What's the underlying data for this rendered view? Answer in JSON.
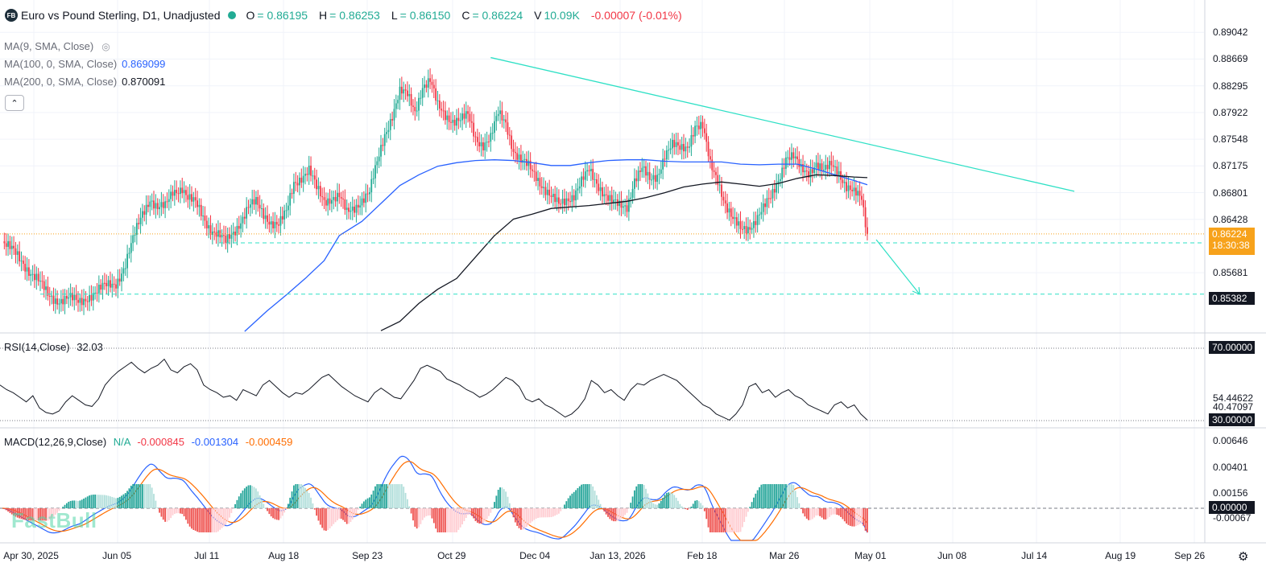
{
  "header": {
    "logo": "FB",
    "title": "Euro vs Pound Sterling, D1, Unadjusted",
    "ohlc": [
      {
        "k": "O",
        "v": "= 0.86195"
      },
      {
        "k": "H",
        "v": "= 0.86253"
      },
      {
        "k": "L",
        "v": "= 0.86150"
      },
      {
        "k": "C",
        "v": "= 0.86224"
      },
      {
        "k": "V",
        "v": "10.09K"
      }
    ],
    "change": "-0.00007 (-0.01%)"
  },
  "indicators": {
    "ma9": {
      "label": "MA(9, SMA, Close)",
      "value": ""
    },
    "ma100": {
      "label": "MA(100, 0, SMA, Close)",
      "value": "0.869099"
    },
    "ma200": {
      "label": "MA(200, 0, SMA, Close)",
      "value": "0.870091"
    },
    "rsi": {
      "label": "RSI(14,Close)",
      "value": "32.03"
    },
    "macd": {
      "label": "MACD(12,26,9,Close)",
      "v1": "N/A",
      "v2": "-0.000845",
      "v3": "-0.001304",
      "v4": "-0.000459"
    }
  },
  "watermark": "FastBull",
  "colors": {
    "up": "#22ab94",
    "down": "#f23645",
    "ma100": "#2962ff",
    "ma200": "#131722",
    "trend": "#2ee0c5",
    "price": "#f7a21b",
    "macd": "#2962ff",
    "signal": "#ff6d00"
  },
  "chart_data": {
    "type": "candlestick",
    "symbol": "EURGBP",
    "timeframe": "D1",
    "price_axis": {
      "ticks": [
        "0.89042",
        "0.88669",
        "0.88295",
        "0.87922",
        "0.87548",
        "0.87175",
        "0.86801",
        "0.86428",
        "0.85681"
      ],
      "range": [
        0.8485,
        0.8918
      ]
    },
    "time_axis": {
      "ticks": [
        "Apr 30, 2025",
        "Jun 05",
        "Jul 11",
        "Aug 18",
        "Sep 23",
        "Oct 29",
        "Dec 04",
        "Jan 13, 2026",
        "Feb 18",
        "Mar 26",
        "May 01",
        "Jun 08",
        "Jul 14",
        "Aug 19",
        "Sep 26"
      ]
    },
    "last_price": "0.86224",
    "countdown": "18:30:38",
    "target_price": "0.85382",
    "close_path": [
      [
        0,
        0.8612
      ],
      [
        10,
        0.8585
      ],
      [
        18,
        0.856
      ],
      [
        24,
        0.8536
      ],
      [
        29,
        0.8531
      ],
      [
        35,
        0.8532
      ],
      [
        40,
        0.8526
      ],
      [
        46,
        0.8537
      ],
      [
        50,
        0.8541
      ],
      [
        54,
        0.8548
      ],
      [
        60,
        0.8555
      ],
      [
        65,
        0.8579
      ],
      [
        70,
        0.8621
      ],
      [
        74,
        0.8653
      ],
      [
        78,
        0.8673
      ],
      [
        82,
        0.8657
      ],
      [
        86,
        0.8659
      ],
      [
        90,
        0.8683
      ],
      [
        95,
        0.8688
      ],
      [
        98,
        0.8671
      ],
      [
        102,
        0.8664
      ],
      [
        106,
        0.8648
      ],
      [
        110,
        0.863
      ],
      [
        114,
        0.862
      ],
      [
        118,
        0.861
      ],
      [
        122,
        0.8625
      ],
      [
        126,
        0.8642
      ],
      [
        130,
        0.8659
      ],
      [
        134,
        0.8665
      ],
      [
        138,
        0.8651
      ],
      [
        142,
        0.864
      ],
      [
        146,
        0.8634
      ],
      [
        150,
        0.8651
      ],
      [
        154,
        0.8695
      ],
      [
        158,
        0.8703
      ],
      [
        162,
        0.871
      ],
      [
        166,
        0.8685
      ],
      [
        170,
        0.867
      ],
      [
        174,
        0.8674
      ],
      [
        178,
        0.8674
      ],
      [
        182,
        0.865
      ],
      [
        186,
        0.866
      ],
      [
        190,
        0.8672
      ],
      [
        194,
        0.868
      ],
      [
        198,
        0.872
      ],
      [
        202,
        0.8762
      ],
      [
        206,
        0.879
      ],
      [
        210,
        0.882
      ],
      [
        214,
        0.8815
      ],
      [
        218,
        0.8795
      ],
      [
        222,
        0.883
      ],
      [
        226,
        0.8835
      ],
      [
        230,
        0.88
      ],
      [
        234,
        0.879
      ],
      [
        238,
        0.8782
      ],
      [
        242,
        0.878
      ],
      [
        246,
        0.8787
      ],
      [
        250,
        0.8758
      ],
      [
        254,
        0.8748
      ],
      [
        258,
        0.8755
      ],
      [
        262,
        0.879
      ],
      [
        266,
        0.878
      ],
      [
        270,
        0.874
      ],
      [
        274,
        0.8722
      ],
      [
        278,
        0.8716
      ],
      [
        282,
        0.8705
      ],
      [
        286,
        0.8688
      ],
      [
        290,
        0.8672
      ],
      [
        294,
        0.8662
      ],
      [
        298,
        0.8672
      ],
      [
        302,
        0.8678
      ],
      [
        306,
        0.8694
      ],
      [
        310,
        0.871
      ],
      [
        314,
        0.8695
      ],
      [
        318,
        0.868
      ],
      [
        322,
        0.8666
      ],
      [
        326,
        0.866
      ],
      [
        330,
        0.8662
      ],
      [
        334,
        0.87
      ],
      [
        338,
        0.8712
      ],
      [
        342,
        0.8696
      ],
      [
        346,
        0.8705
      ],
      [
        350,
        0.8735
      ],
      [
        354,
        0.8745
      ],
      [
        358,
        0.874
      ],
      [
        362,
        0.8746
      ],
      [
        366,
        0.8775
      ],
      [
        370,
        0.877
      ],
      [
        374,
        0.8718
      ],
      [
        378,
        0.87
      ],
      [
        382,
        0.8665
      ],
      [
        386,
        0.864
      ],
      [
        390,
        0.8628
      ],
      [
        394,
        0.8632
      ],
      [
        398,
        0.8643
      ],
      [
        402,
        0.8656
      ],
      [
        406,
        0.8672
      ],
      [
        410,
        0.87
      ],
      [
        414,
        0.873
      ],
      [
        418,
        0.8728
      ],
      [
        422,
        0.8712
      ],
      [
        426,
        0.871
      ],
      [
        430,
        0.8722
      ],
      [
        434,
        0.8708
      ],
      [
        438,
        0.8718
      ],
      [
        442,
        0.871
      ],
      [
        446,
        0.869
      ],
      [
        450,
        0.8678
      ],
      [
        454,
        0.867
      ],
      [
        457,
        0.8622
      ]
    ],
    "ma100_path": [
      [
        128,
        0.8486
      ],
      [
        140,
        0.8515
      ],
      [
        150,
        0.8537
      ],
      [
        160,
        0.856
      ],
      [
        170,
        0.8585
      ],
      [
        178,
        0.862
      ],
      [
        190,
        0.864
      ],
      [
        200,
        0.8665
      ],
      [
        210,
        0.869
      ],
      [
        220,
        0.8705
      ],
      [
        230,
        0.8717
      ],
      [
        240,
        0.8722
      ],
      [
        250,
        0.8725
      ],
      [
        260,
        0.8726
      ],
      [
        270,
        0.8725
      ],
      [
        280,
        0.8722
      ],
      [
        290,
        0.8718
      ],
      [
        300,
        0.8718
      ],
      [
        310,
        0.8722
      ],
      [
        320,
        0.8725
      ],
      [
        330,
        0.8726
      ],
      [
        340,
        0.8726
      ],
      [
        350,
        0.8724
      ],
      [
        360,
        0.8723
      ],
      [
        370,
        0.8723
      ],
      [
        380,
        0.8723
      ],
      [
        390,
        0.872
      ],
      [
        400,
        0.8719
      ],
      [
        410,
        0.872
      ],
      [
        420,
        0.872
      ],
      [
        430,
        0.8713
      ],
      [
        440,
        0.8705
      ],
      [
        450,
        0.8697
      ],
      [
        457,
        0.8691
      ]
    ],
    "ma200_path": [
      [
        200,
        0.8487
      ],
      [
        210,
        0.85
      ],
      [
        220,
        0.8525
      ],
      [
        230,
        0.8545
      ],
      [
        240,
        0.856
      ],
      [
        250,
        0.859
      ],
      [
        260,
        0.862
      ],
      [
        270,
        0.8643
      ],
      [
        280,
        0.865
      ],
      [
        290,
        0.8658
      ],
      [
        300,
        0.866
      ],
      [
        310,
        0.8662
      ],
      [
        320,
        0.8665
      ],
      [
        330,
        0.8668
      ],
      [
        340,
        0.8673
      ],
      [
        350,
        0.868
      ],
      [
        360,
        0.8688
      ],
      [
        370,
        0.8692
      ],
      [
        380,
        0.8695
      ],
      [
        390,
        0.8692
      ],
      [
        400,
        0.8689
      ],
      [
        410,
        0.8693
      ],
      [
        420,
        0.87
      ],
      [
        430,
        0.8705
      ],
      [
        440,
        0.8704
      ],
      [
        450,
        0.8702
      ],
      [
        457,
        0.8701
      ]
    ],
    "trendline": [
      [
        0.8869,
        0.8682
      ]
    ],
    "support_level": "0.86224 minus",
    "rsi": {
      "levels": [
        "70.00000",
        "54.44622",
        "40.47097",
        "30.00000"
      ],
      "range": [
        28,
        76
      ],
      "values": [
        55,
        52,
        50,
        47,
        44,
        48,
        40,
        37,
        36,
        38,
        44,
        48,
        45,
        42,
        41,
        46,
        55,
        60,
        64,
        67,
        70,
        66,
        63,
        66,
        68,
        72,
        65,
        63,
        67,
        69,
        65,
        55,
        52,
        50,
        47,
        48,
        45,
        52,
        50,
        48,
        55,
        58,
        54,
        50,
        47,
        50,
        49,
        52,
        56,
        60,
        62,
        58,
        54,
        51,
        48,
        46,
        44,
        50,
        53,
        50,
        47,
        46,
        52,
        58,
        66,
        68,
        66,
        64,
        59,
        57,
        55,
        52,
        50,
        47,
        49,
        52,
        56,
        60,
        58,
        54,
        46,
        44,
        46,
        42,
        40,
        37,
        34,
        36,
        40,
        46,
        58,
        55,
        50,
        52,
        48,
        45,
        52,
        56,
        55,
        58,
        60,
        62,
        60,
        58,
        54,
        50,
        46,
        42,
        40,
        36,
        34,
        32,
        36,
        42,
        54,
        56,
        50,
        52,
        47,
        50,
        52,
        48,
        46,
        42,
        40,
        38,
        36,
        42,
        44,
        40,
        42,
        36,
        32
      ]
    },
    "macd": {
      "axis": [
        "0.00646",
        "0.00401",
        "0.00156",
        "0.00000",
        "-0.00067"
      ],
      "range": [
        -0.0009,
        0.007
      ]
    }
  }
}
